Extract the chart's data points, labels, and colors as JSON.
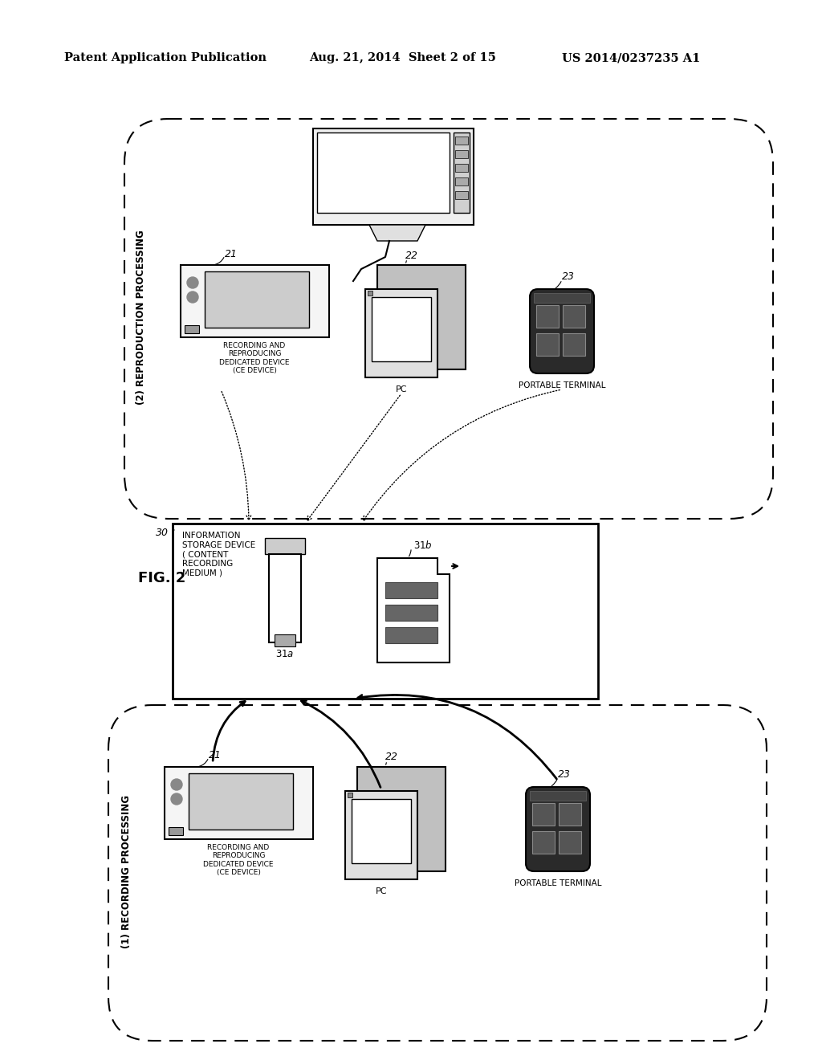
{
  "bg_color": "#ffffff",
  "header_left": "Patent Application Publication",
  "header_mid": "Aug. 21, 2014  Sheet 2 of 15",
  "header_right": "US 2014/0237235 A1",
  "fig_label": "FIG. 2"
}
